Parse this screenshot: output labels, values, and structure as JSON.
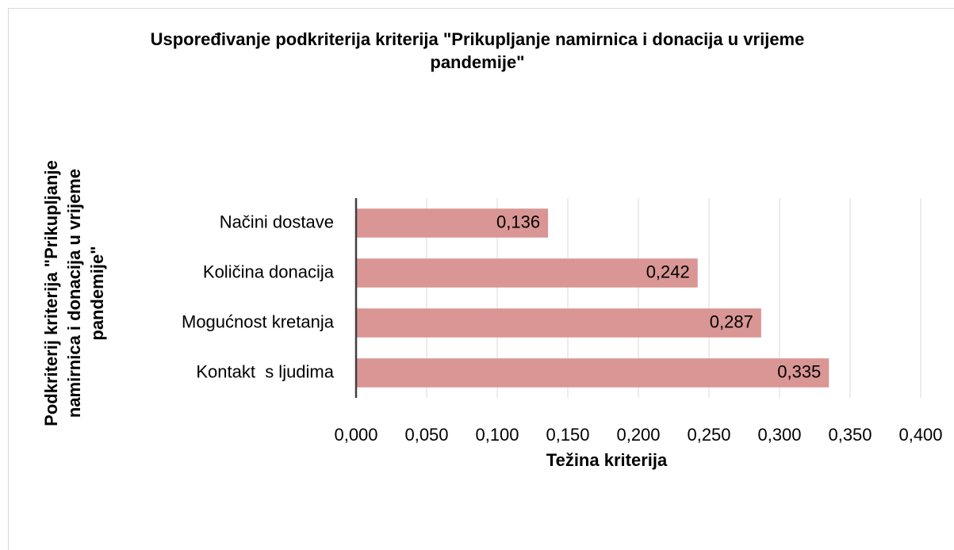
{
  "chart_data": {
    "type": "bar",
    "orientation": "horizontal",
    "title": "Uspoređivanje podkriterija kriterija \"Prikupljanje namirnica i donacija u vrijeme pandemije\"",
    "x_label": "Težina kriterija",
    "y_label": "Podkriterij kriterija \"Prikupljanje namirnica i donacija u vrijeme pandemije\"",
    "categories": [
      "Načini dostave",
      "Količina donacija",
      "Mogućnost kretanja",
      "Kontakt  s ljudima"
    ],
    "values": [
      0.136,
      0.242,
      0.287,
      0.335
    ],
    "value_labels": [
      "0,136",
      "0,242",
      "0,287",
      "0,335"
    ],
    "color": "#d99694",
    "xlim": [
      0,
      0.4
    ],
    "xticks": [
      {
        "value": 0,
        "label": "0,000"
      },
      {
        "value": 0.05,
        "label": "0,050"
      },
      {
        "value": 0.1,
        "label": "0,100"
      },
      {
        "value": 0.15,
        "label": "0,150"
      },
      {
        "value": 0.2,
        "label": "0,200"
      },
      {
        "value": 0.25,
        "label": "0,250"
      },
      {
        "value": 0.3,
        "label": "0,300"
      },
      {
        "value": 0.35,
        "label": "0,350"
      },
      {
        "value": 0.4,
        "label": "0,400"
      }
    ],
    "grid": true
  }
}
